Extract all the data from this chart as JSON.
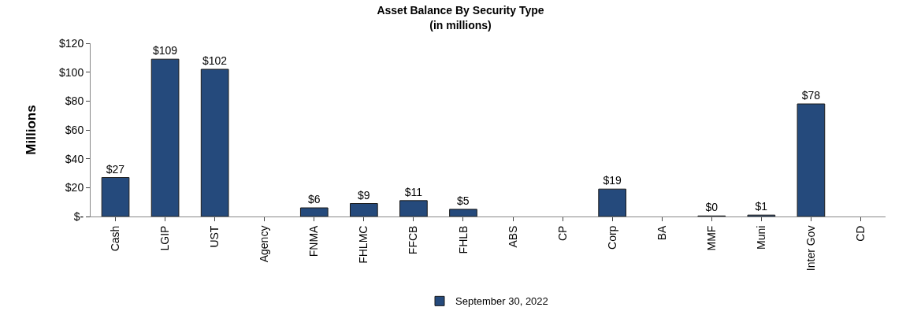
{
  "chart_data": {
    "type": "bar",
    "title": "Asset Balance By Security Type",
    "subtitle": "(in millions)",
    "ylabel": "Millions",
    "categories": [
      "Cash",
      "LGIP",
      "UST",
      "Agency",
      "FNMA",
      "FHLMC",
      "FFCB",
      "FHLB",
      "ABS",
      "CP",
      "Corp",
      "BA",
      "MMF",
      "Muni",
      "Inter Gov",
      "CD"
    ],
    "series": [
      {
        "name": "September 30, 2022",
        "color": "#254a7c",
        "values": [
          27,
          109,
          102,
          null,
          6,
          9,
          11,
          5,
          null,
          null,
          19,
          null,
          0.4,
          1,
          78,
          null
        ],
        "value_labels": [
          "$27",
          "$109",
          "$102",
          null,
          "$6",
          "$9",
          "$11",
          "$5",
          null,
          null,
          "$19",
          null,
          "$0",
          "$1",
          "$78",
          null
        ]
      }
    ],
    "ylim": [
      0,
      120
    ],
    "yticks": [
      {
        "value": 0,
        "label": "$-"
      },
      {
        "value": 20,
        "label": "$20"
      },
      {
        "value": 40,
        "label": "$40"
      },
      {
        "value": 60,
        "label": "$60"
      },
      {
        "value": 80,
        "label": "$80"
      },
      {
        "value": 100,
        "label": "$100"
      },
      {
        "value": 120,
        "label": "$120"
      }
    ],
    "grid": false,
    "legend": "bottom"
  }
}
